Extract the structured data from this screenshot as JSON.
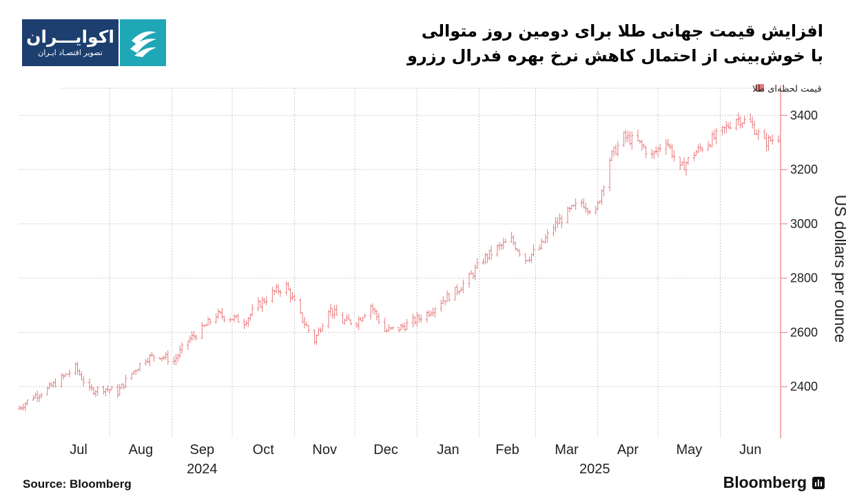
{
  "header": {
    "title_line1": "افزایش قیمت جهانی طلا برای دومین روز متوالی",
    "title_line2": "با خوش‌بینی از احتمال کاهش نرخ بهره فدرال رزرو"
  },
  "logo": {
    "name": "اکوایـــران",
    "tagline": "تصویر اقتصـاد ایـران"
  },
  "footer": {
    "source": "Source:  Bloomberg",
    "brand": "Bloomberg"
  },
  "colors": {
    "series": "#e8787a",
    "axis": "#e8787a",
    "grid": "#c9c9c9",
    "logo_dark": "#1c3f70",
    "logo_teal": "#1fa7b6"
  },
  "chart_data": {
    "type": "bar",
    "style": "ohlc-daily",
    "ylabel": "US dollars per ounce",
    "ylim": [
      2210,
      3510
    ],
    "yticks": [
      2400,
      2600,
      2800,
      3000,
      3200,
      3400
    ],
    "grid": true,
    "legend": {
      "position": "top-right",
      "label": "قیمت لحظه‌ای طلا"
    },
    "x_months": [
      "Jul",
      "Aug",
      "Sep",
      "Oct",
      "Nov",
      "Dec",
      "Jan",
      "Feb",
      "Mar",
      "Apr",
      "May",
      "Jun"
    ],
    "x_years": [
      "2024",
      "2025"
    ],
    "x_range": [
      "2024-06-17",
      "2025-07-01"
    ],
    "series": [
      {
        "name": "قیمت لحظه‌ای طلا",
        "dates": [
          "2024-06-17",
          "2024-06-24",
          "2024-07-01",
          "2024-07-08",
          "2024-07-15",
          "2024-07-22",
          "2024-07-29",
          "2024-08-05",
          "2024-08-12",
          "2024-08-19",
          "2024-08-26",
          "2024-09-02",
          "2024-09-09",
          "2024-09-16",
          "2024-09-23",
          "2024-09-30",
          "2024-10-07",
          "2024-10-14",
          "2024-10-21",
          "2024-10-28",
          "2024-11-04",
          "2024-11-11",
          "2024-11-18",
          "2024-11-25",
          "2024-12-02",
          "2024-12-09",
          "2024-12-16",
          "2024-12-23",
          "2024-12-30",
          "2025-01-06",
          "2025-01-13",
          "2025-01-20",
          "2025-01-27",
          "2025-02-03",
          "2025-02-10",
          "2025-02-17",
          "2025-02-24",
          "2025-03-03",
          "2025-03-10",
          "2025-03-17",
          "2025-03-24",
          "2025-03-31",
          "2025-04-07",
          "2025-04-14",
          "2025-04-21",
          "2025-04-28",
          "2025-05-05",
          "2025-05-12",
          "2025-05-19",
          "2025-05-26",
          "2025-06-02",
          "2025-06-09",
          "2025-06-16",
          "2025-06-23",
          "2025-06-30"
        ],
        "values": [
          2322,
          2365,
          2390,
          2430,
          2470,
          2385,
          2395,
          2380,
          2450,
          2505,
          2515,
          2495,
          2570,
          2610,
          2665,
          2655,
          2640,
          2700,
          2745,
          2770,
          2660,
          2570,
          2690,
          2640,
          2640,
          2700,
          2605,
          2615,
          2640,
          2670,
          2715,
          2750,
          2800,
          2870,
          2910,
          2940,
          2870,
          2910,
          2990,
          3040,
          3080,
          3040,
          3240,
          3320,
          3300,
          3250,
          3310,
          3200,
          3260,
          3300,
          3340,
          3390,
          3370,
          3300,
          3320
        ]
      }
    ]
  }
}
